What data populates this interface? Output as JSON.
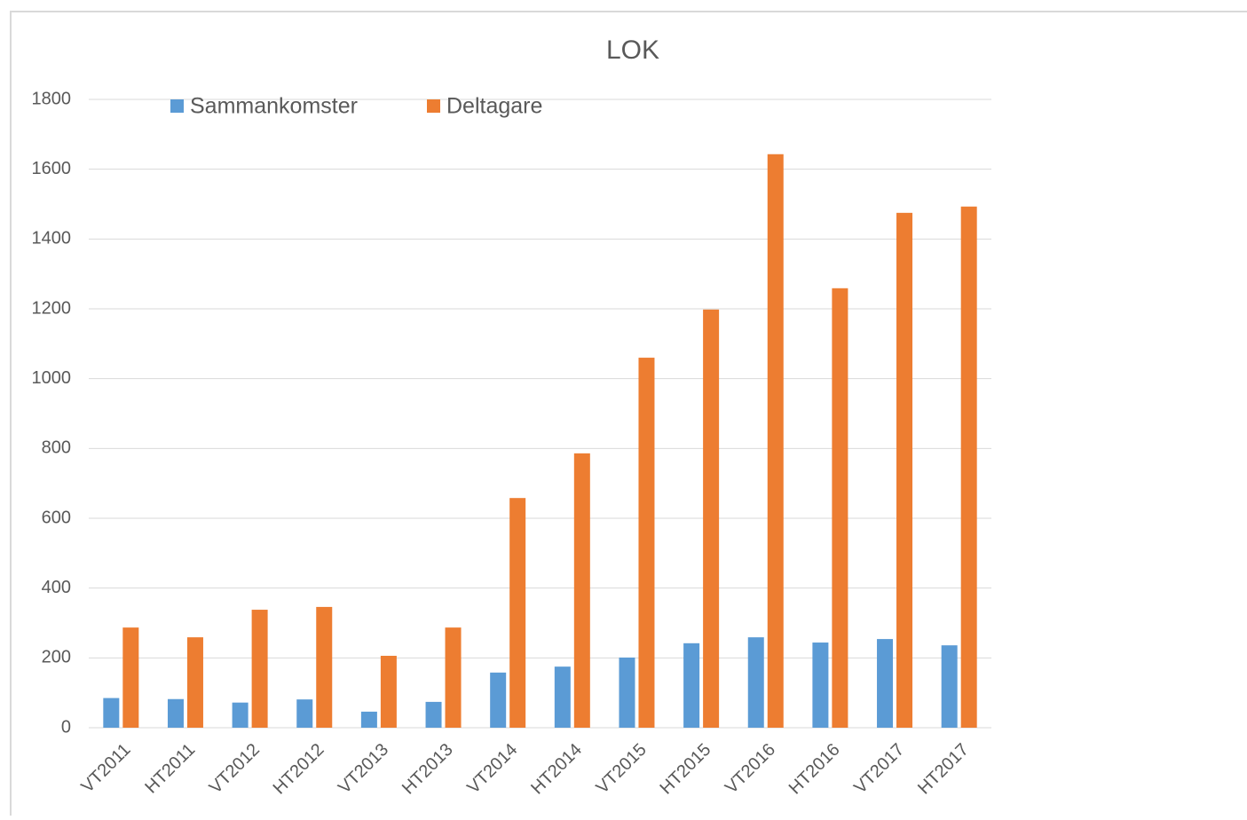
{
  "chart_data": {
    "type": "bar",
    "title": "LOK",
    "categories": [
      "VT2011",
      "HT2011",
      "VT2012",
      "HT2012",
      "VT2013",
      "HT2013",
      "VT2014",
      "HT2014",
      "VT2015",
      "HT2015",
      "VT2016",
      "HT2016",
      "VT2017",
      "HT2017"
    ],
    "series": [
      {
        "name": "Sammankomster",
        "color": "#5b9bd5",
        "values": [
          85,
          82,
          72,
          81,
          46,
          74,
          158,
          175,
          201,
          242,
          259,
          244,
          254,
          236
        ]
      },
      {
        "name": "Deltagare",
        "color": "#ed7d31",
        "values": [
          287,
          259,
          338,
          346,
          206,
          287,
          658,
          786,
          1060,
          1198,
          1643,
          1259,
          1475,
          1493
        ]
      }
    ],
    "ylim": [
      0,
      1800
    ],
    "yticks": [
      0,
      200,
      400,
      600,
      800,
      1000,
      1200,
      1400,
      1600,
      1800
    ],
    "grid": true,
    "legend": "top-left"
  }
}
